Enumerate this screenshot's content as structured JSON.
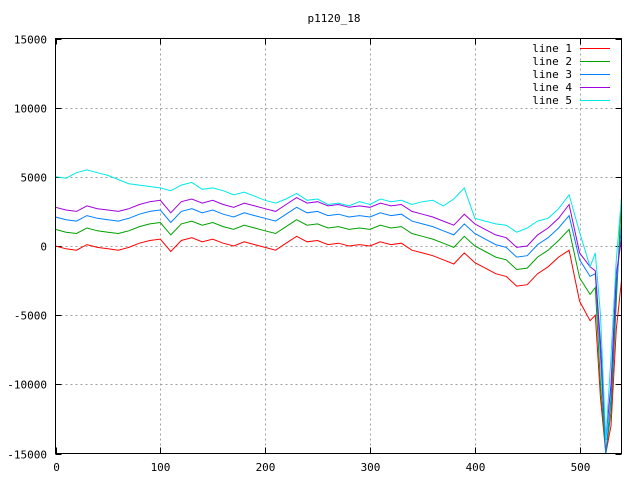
{
  "chart_data": {
    "type": "line",
    "title": "p1120_18",
    "xlabel": "",
    "ylabel": "",
    "xlim": [
      0,
      540
    ],
    "ylim": [
      -15000,
      15000
    ],
    "xticks": [
      0,
      100,
      200,
      300,
      400,
      500
    ],
    "yticks": [
      -15000,
      -10000,
      -5000,
      0,
      5000,
      10000,
      15000
    ],
    "grid": true,
    "legend_position": "top-right",
    "x": [
      0,
      10,
      20,
      30,
      40,
      50,
      60,
      70,
      80,
      90,
      100,
      110,
      120,
      130,
      140,
      150,
      160,
      170,
      180,
      190,
      200,
      210,
      220,
      230,
      240,
      250,
      260,
      270,
      280,
      290,
      300,
      310,
      320,
      330,
      340,
      350,
      360,
      370,
      380,
      390,
      400,
      410,
      420,
      430,
      440,
      450,
      460,
      470,
      480,
      490,
      500,
      510,
      515,
      520,
      525,
      530,
      535,
      540
    ],
    "series": [
      {
        "name": "line 1",
        "color": "#ff0000",
        "values": [
          0,
          -200,
          -300,
          100,
          -100,
          -200,
          -300,
          -100,
          200,
          400,
          500,
          -400,
          400,
          600,
          300,
          500,
          200,
          0,
          300,
          100,
          -100,
          -300,
          200,
          700,
          300,
          400,
          100,
          200,
          0,
          100,
          0,
          300,
          100,
          200,
          -300,
          -500,
          -700,
          -1000,
          -1300,
          -500,
          -1200,
          -1600,
          -2000,
          -2200,
          -2900,
          -2800,
          -2000,
          -1500,
          -800,
          -300,
          -4000,
          -5400,
          -5000,
          -11000,
          -15000,
          -13000,
          -6000,
          -2500
        ]
      },
      {
        "name": "line 2",
        "color": "#00a000",
        "values": [
          1200,
          1000,
          900,
          1300,
          1100,
          1000,
          900,
          1100,
          1400,
          1600,
          1700,
          800,
          1600,
          1800,
          1500,
          1700,
          1400,
          1200,
          1500,
          1300,
          1100,
          900,
          1400,
          1900,
          1500,
          1600,
          1300,
          1400,
          1200,
          1300,
          1200,
          1500,
          1300,
          1400,
          900,
          700,
          500,
          200,
          -100,
          700,
          0,
          -400,
          -800,
          -1000,
          -1700,
          -1600,
          -800,
          -300,
          400,
          1200,
          -2300,
          -3500,
          -3000,
          -10000,
          -15000,
          -12000,
          -4000,
          3500
        ]
      },
      {
        "name": "line 3",
        "color": "#0080ff",
        "values": [
          2100,
          1900,
          1800,
          2200,
          2000,
          1900,
          1800,
          2000,
          2300,
          2500,
          2600,
          1700,
          2500,
          2700,
          2400,
          2600,
          2300,
          2100,
          2400,
          2200,
          2000,
          1800,
          2300,
          2800,
          2400,
          2500,
          2200,
          2300,
          2100,
          2200,
          2100,
          2400,
          2200,
          2300,
          1800,
          1600,
          1400,
          1100,
          800,
          1600,
          900,
          500,
          100,
          -100,
          -800,
          -700,
          100,
          600,
          1300,
          2200,
          -1000,
          -2200,
          -2000,
          -8000,
          -15000,
          -11000,
          -3000,
          1500
        ]
      },
      {
        "name": "line 4",
        "color": "#a000e0",
        "values": [
          2800,
          2600,
          2500,
          2900,
          2700,
          2600,
          2500,
          2700,
          3000,
          3200,
          3300,
          2400,
          3200,
          3400,
          3100,
          3300,
          3000,
          2800,
          3100,
          2900,
          2700,
          2500,
          3000,
          3500,
          3100,
          3200,
          2900,
          3000,
          2800,
          2900,
          2800,
          3100,
          2900,
          3000,
          2500,
          2300,
          2100,
          1800,
          1500,
          2300,
          1600,
          1200,
          800,
          600,
          -100,
          0,
          800,
          1300,
          2000,
          3000,
          -500,
          -1500,
          -1800,
          -7000,
          -14000,
          -10000,
          -2000,
          500
        ]
      },
      {
        "name": "line 5",
        "color": "#00e8e8",
        "values": [
          5000,
          4900,
          5300,
          5500,
          5300,
          5100,
          4800,
          4500,
          4400,
          4300,
          4200,
          4000,
          4400,
          4600,
          4100,
          4200,
          4000,
          3700,
          3900,
          3600,
          3300,
          3100,
          3400,
          3800,
          3300,
          3400,
          3000,
          3100,
          2900,
          3200,
          3000,
          3400,
          3200,
          3300,
          3000,
          3200,
          3300,
          2900,
          3400,
          4200,
          2000,
          1800,
          1600,
          1500,
          1000,
          1300,
          1800,
          2000,
          2700,
          3700,
          1000,
          -1500,
          -500,
          -5000,
          -14000,
          -8000,
          -1000,
          3500
        ]
      }
    ]
  }
}
